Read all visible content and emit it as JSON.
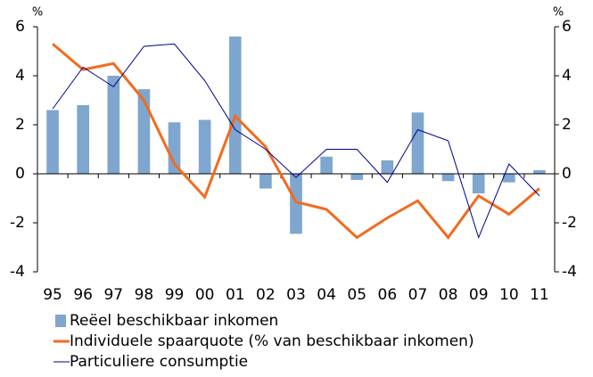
{
  "chart_data": {
    "type": "bar-line",
    "y_unit": "%",
    "y2_unit": "%",
    "categories": [
      "95",
      "96",
      "97",
      "98",
      "99",
      "00",
      "01",
      "02",
      "03",
      "04",
      "05",
      "06",
      "07",
      "08",
      "09",
      "10",
      "11"
    ],
    "ylim": [
      -4,
      6
    ],
    "yticks": [
      -4,
      -2,
      0,
      2,
      4,
      6
    ],
    "y2lim": [
      -4,
      6
    ],
    "y2ticks": [
      -4,
      -2,
      0,
      2,
      4,
      6
    ],
    "series": [
      {
        "name": "Reëel beschikbaar inkomen",
        "kind": "bar",
        "color": "#7ea6cf",
        "values": [
          2.6,
          2.8,
          4.0,
          3.45,
          2.1,
          2.2,
          5.6,
          -0.6,
          -2.45,
          0.7,
          -0.25,
          0.55,
          2.5,
          -0.3,
          -0.8,
          -0.35,
          0.15
        ]
      },
      {
        "name": "Individuele spaarquote (% van beschikbaar inkomen)",
        "kind": "line",
        "color": "#f26b1d",
        "values": [
          5.3,
          4.25,
          4.5,
          3.0,
          0.4,
          -0.95,
          2.35,
          1.1,
          -1.15,
          -1.45,
          -2.6,
          -1.8,
          -1.1,
          -2.6,
          -0.9,
          -1.65,
          -0.6
        ]
      },
      {
        "name": "Particuliere consumptie",
        "kind": "line",
        "color": "#00008b",
        "axis": "y2",
        "values": [
          2.65,
          4.35,
          3.55,
          5.2,
          5.3,
          3.8,
          1.8,
          1.0,
          -0.15,
          1.0,
          1.0,
          -0.35,
          1.8,
          1.35,
          -2.6,
          0.4,
          -0.9
        ]
      }
    ]
  }
}
